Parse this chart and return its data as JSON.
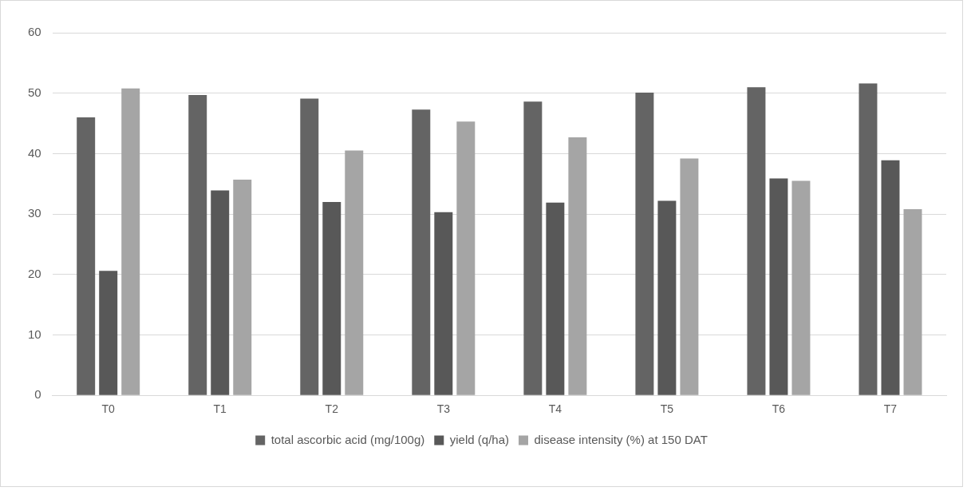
{
  "chart_data": {
    "type": "bar",
    "categories": [
      "T0",
      "T1",
      "T2",
      "T3",
      "T4",
      "T5",
      "T6",
      "T7"
    ],
    "series": [
      {
        "name": "total ascorbic acid (mg/100g)",
        "color": "#646464",
        "values": [
          46.0,
          49.7,
          49.1,
          47.3,
          48.6,
          50.1,
          51.0,
          51.6
        ]
      },
      {
        "name": "yield (q/ha)",
        "color": "#585858",
        "values": [
          20.6,
          33.9,
          32.0,
          30.3,
          31.9,
          32.2,
          35.9,
          38.9
        ]
      },
      {
        "name": "disease intensity (%) at 150 DAT",
        "color": "#a5a5a5",
        "values": [
          50.8,
          35.7,
          40.5,
          45.3,
          42.7,
          39.2,
          35.5,
          30.8
        ]
      }
    ],
    "ylim": [
      0,
      60
    ],
    "yticks": [
      0,
      10,
      20,
      30,
      40,
      50,
      60
    ],
    "grid": "y",
    "legend": "bottom"
  }
}
